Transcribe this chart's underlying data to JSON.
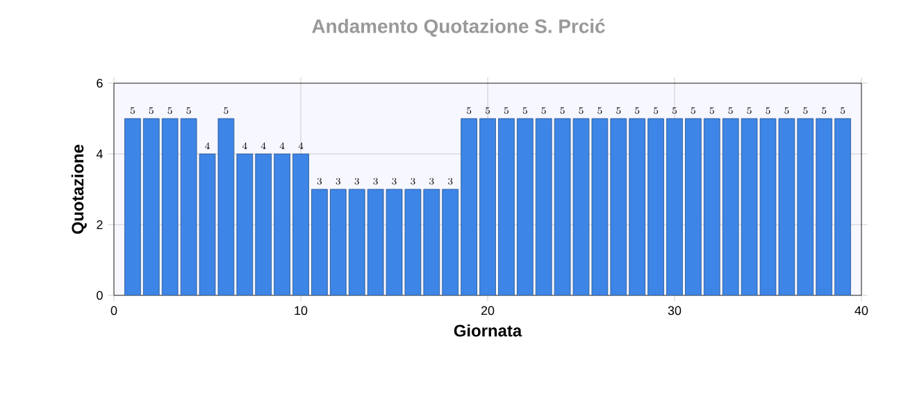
{
  "chart_data": {
    "type": "bar",
    "title": "Andamento Quotazione S. Prcić",
    "xlabel": "Giornata",
    "ylabel": "Quotazione",
    "x": [
      1,
      2,
      3,
      4,
      5,
      6,
      7,
      8,
      9,
      10,
      11,
      12,
      13,
      14,
      15,
      16,
      17,
      18,
      19,
      20,
      21,
      22,
      23,
      24,
      25,
      26,
      27,
      28,
      29,
      30,
      31,
      32,
      33,
      34,
      35,
      36,
      37,
      38,
      39
    ],
    "values": [
      5,
      5,
      5,
      5,
      4,
      5,
      4,
      4,
      4,
      4,
      3,
      3,
      3,
      3,
      3,
      3,
      3,
      3,
      5,
      5,
      5,
      5,
      5,
      5,
      5,
      5,
      5,
      5,
      5,
      5,
      5,
      5,
      5,
      5,
      5,
      5,
      5,
      5,
      5
    ],
    "color": "#3d85e6",
    "xlim": [
      0,
      40
    ],
    "xticks": [
      0,
      10,
      20,
      30,
      40
    ],
    "ylim": [
      0,
      6
    ],
    "yticks": [
      0,
      2,
      4,
      6
    ],
    "grid": true,
    "data_labels": true
  }
}
